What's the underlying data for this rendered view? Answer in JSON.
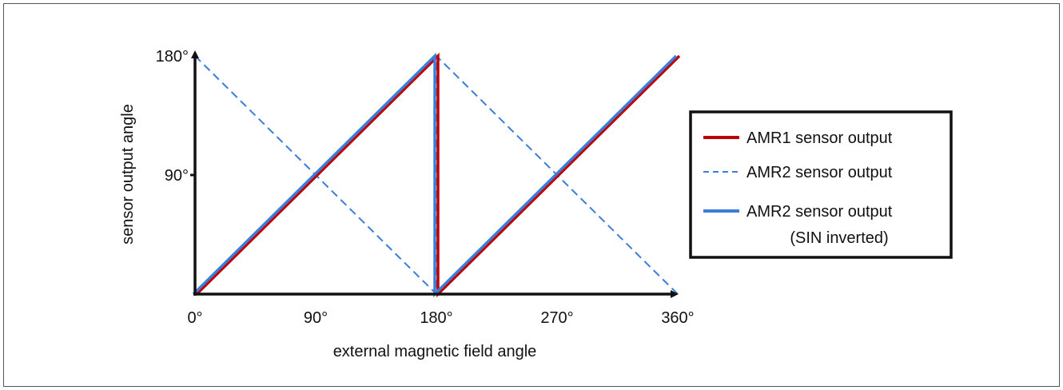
{
  "chart_data": {
    "type": "line",
    "xlabel": "external magnetic field angle",
    "ylabel": "sensor output angle",
    "xlim": [
      0,
      360
    ],
    "ylim": [
      0,
      180
    ],
    "xticks": [
      {
        "value": 0,
        "label": "0°"
      },
      {
        "value": 90,
        "label": "90°"
      },
      {
        "value": 180,
        "label": "180°"
      },
      {
        "value": 270,
        "label": "270°"
      },
      {
        "value": 360,
        "label": "360°"
      }
    ],
    "yticks": [
      {
        "value": 90,
        "label": "90°"
      },
      {
        "value": 180,
        "label": "180°"
      }
    ],
    "grid": false,
    "legend_position": "right",
    "series": [
      {
        "name": "AMR1 sensor output",
        "color": "#c00000",
        "style": "solid",
        "points": [
          [
            0,
            0
          ],
          [
            180,
            180
          ],
          [
            180,
            0
          ],
          [
            360,
            180
          ]
        ]
      },
      {
        "name": "AMR2 sensor output",
        "color": "#3c7dd9",
        "style": "dashed",
        "points": [
          [
            0,
            180
          ],
          [
            180,
            0
          ],
          [
            180,
            180
          ],
          [
            360,
            0
          ]
        ]
      },
      {
        "name": "AMR2 sensor output",
        "name_line2": "(SIN inverted)",
        "color": "#3c7dd9",
        "style": "solid",
        "points": [
          [
            0,
            0
          ],
          [
            180,
            180
          ],
          [
            180,
            0
          ],
          [
            360,
            180
          ]
        ]
      }
    ]
  }
}
